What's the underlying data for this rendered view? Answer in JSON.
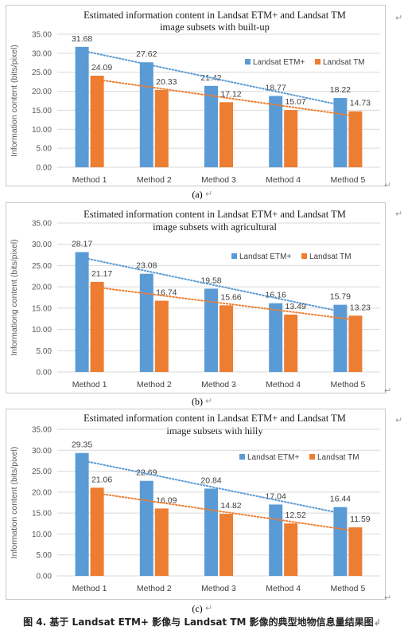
{
  "colors": {
    "etm": "#5b9bd5",
    "tm": "#ed7d31",
    "grid": "#d9d9d9"
  },
  "chart_data": [
    {
      "type": "bar",
      "title_lines": [
        "Estimated information content in Landsat ETM+ and Landsat TM",
        "image subsets with built-up"
      ],
      "ylabel": "Information content (bits/pixel)",
      "xlabel": "",
      "ylim": [
        0,
        35
      ],
      "yticks": [
        "0.00",
        "5.00",
        "10.00",
        "15.00",
        "20.00",
        "25.00",
        "30.00",
        "35.00"
      ],
      "categories": [
        "Method 1",
        "Method 2",
        "Method 3",
        "Method 4",
        "Method 5"
      ],
      "series": [
        {
          "name": "Landsat ETM+",
          "values": [
            31.68,
            27.62,
            21.42,
            18.77,
            18.22
          ],
          "labels": [
            "31.68",
            "27.62",
            "21.42",
            "18.77",
            "18.22"
          ]
        },
        {
          "name": "Landsat TM",
          "values": [
            24.09,
            20.33,
            17.12,
            15.07,
            14.73
          ],
          "labels": [
            "24.09",
            "20.33",
            "17.12",
            "15.07",
            "14.73"
          ]
        }
      ],
      "trendlines": "linear dotted",
      "grid": true,
      "legend": "right",
      "sublabel": "(a)"
    },
    {
      "type": "bar",
      "title_lines": [
        "Estimated information content in Landsat ETM+ and Landsat TM",
        "image subsets with agricultural"
      ],
      "ylabel": "Informationg content (bits/pixel)",
      "xlabel": "",
      "ylim": [
        0,
        35
      ],
      "yticks": [
        "0.00",
        "5.00",
        "10.00",
        "15.00",
        "20.00",
        "25.00",
        "30.00",
        "35.00"
      ],
      "categories": [
        "Method 1",
        "Method 2",
        "Method 3",
        "Method 4",
        "Method 5"
      ],
      "series": [
        {
          "name": "Landsat ETM+",
          "values": [
            28.17,
            23.08,
            19.58,
            16.16,
            15.79
          ],
          "labels": [
            "28.17",
            "23.08",
            "19.58",
            "16.16",
            "15.79"
          ]
        },
        {
          "name": "Landsat TM",
          "values": [
            21.17,
            16.74,
            15.66,
            13.49,
            13.23
          ],
          "labels": [
            "21.17",
            "16.74",
            "15.66",
            "13.49",
            "13.23"
          ]
        }
      ],
      "trendlines": "linear dotted",
      "grid": true,
      "legend": "top-right",
      "sublabel": "(b)"
    },
    {
      "type": "bar",
      "title_lines": [
        "Estimated information content in Landsat ETM+ and Landsat TM",
        "image subsets with hilly"
      ],
      "ylabel": "Information content (bits/pixel)",
      "xlabel": "",
      "ylim": [
        0,
        35
      ],
      "yticks": [
        "0.00",
        "5.00",
        "10.00",
        "15.00",
        "20.00",
        "25.00",
        "30.00",
        "35.00"
      ],
      "categories": [
        "Method 1",
        "Method 2",
        "Method 3",
        "Method 4",
        "Method 5"
      ],
      "series": [
        {
          "name": "Landsat ETM+",
          "values": [
            29.35,
            22.69,
            20.84,
            17.04,
            16.44
          ],
          "labels": [
            "29.35",
            "22.69",
            "20.84",
            "17.04",
            "16.44"
          ]
        },
        {
          "name": "Landsat TM",
          "values": [
            21.06,
            16.09,
            14.82,
            12.52,
            11.59
          ],
          "labels": [
            "21.06",
            "16.09",
            "14.82",
            "12.52",
            "11.59"
          ]
        }
      ],
      "trendlines": "linear dotted",
      "grid": true,
      "legend": "top-right",
      "sublabel": "(c)"
    }
  ],
  "figure_caption": "图 4.  基于 Landsat ETM+ 影像与 Landsat TM 影像的典型地物信息量结果图",
  "edit_marks": {
    "arrow": "↵",
    "end": "↲"
  }
}
